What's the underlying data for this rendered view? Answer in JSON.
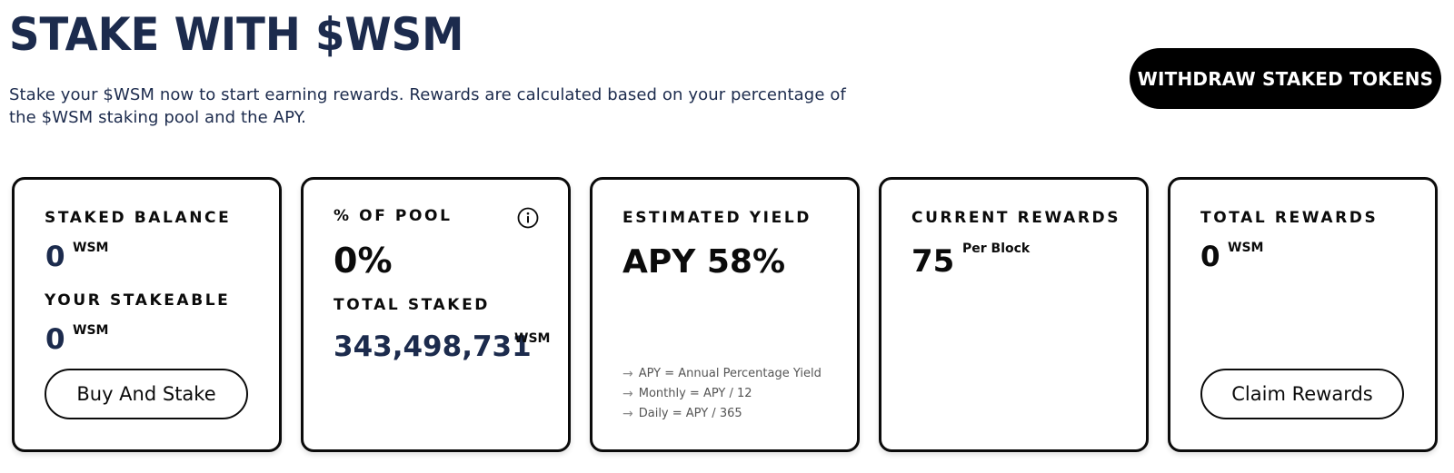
{
  "header": {
    "title": "STAKE WITH $WSM",
    "subtitle": "Stake your $WSM now to start earning rewards. Rewards are calculated based on your percentage of the $WSM staking pool and the APY.",
    "withdraw_label": "WITHDRAW STAKED TOKENS"
  },
  "cards": {
    "staked_balance": {
      "label": "STAKED BALANCE",
      "value": "0",
      "unit": "WSM",
      "stakeable_label": "YOUR STAKEABLE",
      "stakeable_value": "0",
      "stakeable_unit": "WSM",
      "button_label": "Buy And Stake"
    },
    "pool": {
      "label": "% OF POOL",
      "value": "0%",
      "total_label": "TOTAL STAKED",
      "total_value": "343,498,731",
      "total_unit": "WSM",
      "info_icon": "info-icon"
    },
    "yield": {
      "label": "ESTIMATED YIELD",
      "value": "APY 58%",
      "notes": [
        "APY = Annual Percentage Yield",
        "Monthly = APY / 12",
        "Daily = APY / 365"
      ]
    },
    "current_rewards": {
      "label": "CURRENT REWARDS",
      "value": "75",
      "unit": "Per Block"
    },
    "total_rewards": {
      "label": "TOTAL REWARDS",
      "value": "0",
      "unit": "WSM",
      "button_label": "Claim Rewards"
    }
  },
  "colors": {
    "navy": "#1c2b4d",
    "black": "#0b0b0b",
    "background": "#ffffff"
  }
}
